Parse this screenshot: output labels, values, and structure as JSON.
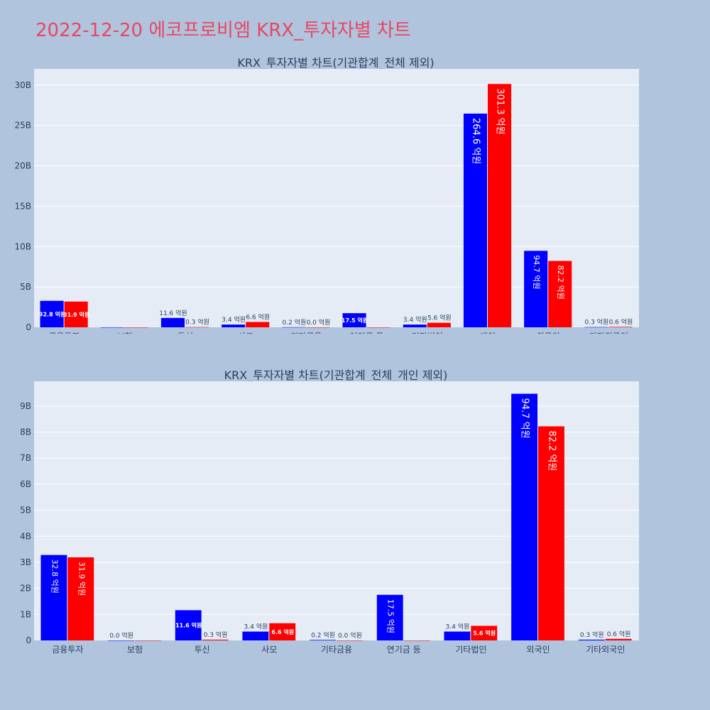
{
  "page_title": "2022-12-20 에코프로비엠 KRX_투자자별 차트",
  "colors": {
    "series_blue": "#0000ff",
    "series_red": "#ff0000",
    "title": "#e8475f",
    "background": "#b0c4de",
    "plot_bg": "#e5ecf6"
  },
  "chart_data": [
    {
      "type": "bar",
      "title": "KRX_투자자별 차트(기관합계_전체 제외)",
      "categories": [
        "금융투자",
        "보험",
        "투신",
        "사모",
        "기타금융",
        "연기금 등",
        "기타법인",
        "개인",
        "외국인",
        "기타외국인"
      ],
      "yticks": [
        "0",
        "5B",
        "10B",
        "15B",
        "20B",
        "25B",
        "30B"
      ],
      "ylim": [
        0,
        32
      ],
      "series": [
        {
          "values": [
            3.28,
            0,
            1.16,
            0.34,
            0.02,
            1.75,
            0.34,
            26.46,
            9.47,
            0.03
          ],
          "labels": [
            "32.8 억원",
            "",
            "11.6 억원",
            "3.4 억원",
            "0.2 억원",
            "17.5 억원",
            "3.4 억원",
            "264.6 억원",
            "94.7 억원",
            "0.3 억원"
          ]
        },
        {
          "values": [
            3.19,
            0,
            0.03,
            0.66,
            0.0,
            0,
            0.56,
            30.13,
            8.22,
            0.06
          ],
          "labels": [
            "31.9 억원",
            "",
            "0.3 억원",
            "6.6 억원",
            "0.0 억원",
            "",
            "5.6 억원",
            "301.3 억원",
            "82.2 억원",
            "0.6 억원"
          ]
        }
      ]
    },
    {
      "type": "bar",
      "title": "KRX_투자자별 차트(기관합계_전체_개인 제외)",
      "categories": [
        "금융투자",
        "보험",
        "투신",
        "사모",
        "기타금융",
        "연기금 등",
        "기타법인",
        "외국인",
        "기타외국인"
      ],
      "yticks": [
        "0",
        "1B",
        "2B",
        "3B",
        "4B",
        "5B",
        "6B",
        "7B",
        "8B",
        "9B"
      ],
      "ylim": [
        0,
        9.95
      ],
      "series": [
        {
          "values": [
            3.28,
            0.0,
            1.16,
            0.34,
            0.02,
            1.75,
            0.34,
            9.47,
            0.03
          ],
          "labels": [
            "32.8 억원",
            "0.0 억원",
            "11.6 억원",
            "3.4 억원",
            "0.2 억원",
            "17.5 억원",
            "3.4 억원",
            "94.7 억원",
            "0.3 억원"
          ]
        },
        {
          "values": [
            3.19,
            0,
            0.03,
            0.66,
            0.0,
            0,
            0.56,
            8.22,
            0.06
          ],
          "labels": [
            "31.9 억원",
            "",
            "0.3 억원",
            "6.6 억원",
            "0.0 억원",
            "",
            "5.6 억원",
            "82.2 억원",
            "0.6 억원"
          ]
        }
      ]
    }
  ]
}
